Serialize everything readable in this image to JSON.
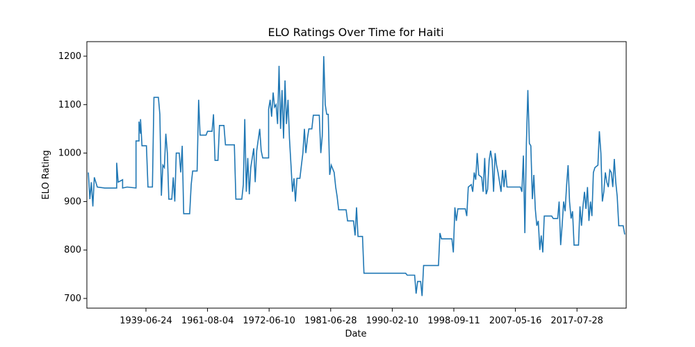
{
  "chart_data": {
    "type": "line",
    "title": "ELO Ratings Over Time for Haiti",
    "xlabel": "Date",
    "ylabel": "ELO Rating",
    "x_tick_labels": [
      "1939-06-24",
      "1961-08-04",
      "1972-06-10",
      "1981-06-28",
      "1990-02-10",
      "1998-09-11",
      "2007-05-16",
      "2017-07-28"
    ],
    "y_ticks": [
      700,
      800,
      900,
      1000,
      1100,
      1200
    ],
    "ylim": [
      680,
      1230
    ],
    "grid": false,
    "line_color": "#1f77b4",
    "series": [
      {
        "points": [
          [
            1,
            960
          ],
          [
            2,
            905
          ],
          [
            3,
            940
          ],
          [
            4,
            890
          ],
          [
            5,
            950
          ],
          [
            7,
            930
          ],
          [
            12,
            928
          ],
          [
            20,
            928
          ],
          [
            20,
            980
          ],
          [
            21,
            940
          ],
          [
            24,
            945
          ],
          [
            24,
            928
          ],
          [
            27,
            930
          ],
          [
            33,
            928
          ],
          [
            33,
            1025
          ],
          [
            35,
            1025
          ],
          [
            35,
            1065
          ],
          [
            36,
            1040
          ],
          [
            36,
            1070
          ],
          [
            37,
            1015
          ],
          [
            40,
            1015
          ],
          [
            41,
            930
          ],
          [
            44,
            930
          ],
          [
            45,
            1115
          ],
          [
            48,
            1115
          ],
          [
            49,
            1080
          ],
          [
            50,
            912
          ],
          [
            51,
            975
          ],
          [
            52,
            970
          ],
          [
            53,
            1040
          ],
          [
            54,
            1000
          ],
          [
            55,
            905
          ],
          [
            57,
            905
          ],
          [
            58,
            950
          ],
          [
            59,
            900
          ],
          [
            60,
            1000
          ],
          [
            62,
            1000
          ],
          [
            63,
            960
          ],
          [
            64,
            1015
          ],
          [
            65,
            875
          ],
          [
            69,
            875
          ],
          [
            70,
            935
          ],
          [
            71,
            963
          ],
          [
            74,
            963
          ],
          [
            75,
            1110
          ],
          [
            76,
            1037
          ],
          [
            80,
            1037
          ],
          [
            81,
            1045
          ],
          [
            84,
            1045
          ],
          [
            85,
            1080
          ],
          [
            86,
            985
          ],
          [
            88,
            985
          ],
          [
            89,
            1057
          ],
          [
            92,
            1057
          ],
          [
            93,
            1017
          ],
          [
            99,
            1017
          ],
          [
            100,
            905
          ],
          [
            104,
            905
          ],
          [
            105,
            935
          ],
          [
            106,
            1070
          ],
          [
            107,
            920
          ],
          [
            108,
            990
          ],
          [
            109,
            915
          ],
          [
            110,
            970
          ],
          [
            112,
            1010
          ],
          [
            113,
            940
          ],
          [
            114,
            1005
          ],
          [
            116,
            1050
          ],
          [
            117,
            1005
          ],
          [
            118,
            990
          ],
          [
            122,
            990
          ],
          [
            122,
            1090
          ],
          [
            123,
            1110
          ],
          [
            124,
            1075
          ],
          [
            125,
            1125
          ],
          [
            126,
            1095
          ],
          [
            127,
            1100
          ],
          [
            128,
            1060
          ],
          [
            129,
            1180
          ],
          [
            130,
            1050
          ],
          [
            131,
            1130
          ],
          [
            132,
            1030
          ],
          [
            133,
            1150
          ],
          [
            134,
            1060
          ],
          [
            135,
            1110
          ],
          [
            136,
            1030
          ],
          [
            137,
            975
          ],
          [
            138,
            920
          ],
          [
            139,
            948
          ],
          [
            140,
            900
          ],
          [
            141,
            948
          ],
          [
            143,
            948
          ],
          [
            144,
            975
          ],
          [
            145,
            1000
          ],
          [
            146,
            1050
          ],
          [
            147,
            1000
          ],
          [
            148,
            1030
          ],
          [
            149,
            1050
          ],
          [
            151,
            1050
          ],
          [
            152,
            1078
          ],
          [
            156,
            1078
          ],
          [
            157,
            1000
          ],
          [
            158,
            1035
          ],
          [
            159,
            1200
          ],
          [
            160,
            1100
          ],
          [
            161,
            1080
          ],
          [
            162,
            1080
          ],
          [
            163,
            955
          ],
          [
            164,
            975
          ],
          [
            166,
            960
          ],
          [
            167,
            930
          ],
          [
            168,
            910
          ],
          [
            169,
            883
          ],
          [
            174,
            883
          ],
          [
            175,
            860
          ],
          [
            179,
            860
          ],
          [
            180,
            830
          ],
          [
            181,
            888
          ],
          [
            182,
            828
          ],
          [
            185,
            828
          ],
          [
            186,
            752
          ],
          [
            214,
            752
          ],
          [
            215,
            748
          ],
          [
            220,
            748
          ],
          [
            221,
            710
          ],
          [
            222,
            735
          ],
          [
            224,
            735
          ],
          [
            225,
            705
          ],
          [
            226,
            768
          ],
          [
            236,
            768
          ],
          [
            237,
            835
          ],
          [
            238,
            823
          ],
          [
            245,
            823
          ],
          [
            246,
            795
          ],
          [
            247,
            888
          ],
          [
            248,
            860
          ],
          [
            249,
            885
          ],
          [
            254,
            885
          ],
          [
            255,
            870
          ],
          [
            256,
            930
          ],
          [
            258,
            935
          ],
          [
            259,
            920
          ],
          [
            260,
            960
          ],
          [
            261,
            945
          ],
          [
            262,
            1000
          ],
          [
            263,
            955
          ],
          [
            265,
            950
          ],
          [
            266,
            920
          ],
          [
            267,
            990
          ],
          [
            268,
            915
          ],
          [
            269,
            925
          ],
          [
            270,
            985
          ],
          [
            271,
            1005
          ],
          [
            272,
            985
          ],
          [
            273,
            920
          ],
          [
            274,
            1000
          ],
          [
            275,
            975
          ],
          [
            276,
            960
          ],
          [
            277,
            940
          ],
          [
            278,
            920
          ],
          [
            279,
            965
          ],
          [
            280,
            930
          ],
          [
            281,
            965
          ],
          [
            282,
            930
          ],
          [
            291,
            930
          ],
          [
            292,
            920
          ],
          [
            293,
            995
          ],
          [
            294,
            835
          ],
          [
            295,
            1020
          ],
          [
            296,
            1130
          ],
          [
            297,
            1020
          ],
          [
            298,
            1015
          ],
          [
            299,
            905
          ],
          [
            300,
            955
          ],
          [
            301,
            885
          ],
          [
            302,
            850
          ],
          [
            303,
            860
          ],
          [
            304,
            800
          ],
          [
            305,
            830
          ],
          [
            306,
            795
          ],
          [
            307,
            870
          ],
          [
            312,
            870
          ],
          [
            313,
            865
          ],
          [
            316,
            865
          ],
          [
            317,
            900
          ],
          [
            318,
            810
          ],
          [
            319,
            850
          ],
          [
            320,
            900
          ],
          [
            321,
            880
          ],
          [
            322,
            935
          ],
          [
            323,
            975
          ],
          [
            324,
            900
          ],
          [
            325,
            865
          ],
          [
            326,
            880
          ],
          [
            327,
            810
          ],
          [
            330,
            810
          ],
          [
            331,
            890
          ],
          [
            332,
            850
          ],
          [
            333,
            890
          ],
          [
            334,
            920
          ],
          [
            335,
            885
          ],
          [
            336,
            930
          ],
          [
            337,
            860
          ],
          [
            338,
            900
          ],
          [
            339,
            870
          ],
          [
            340,
            960
          ],
          [
            341,
            970
          ],
          [
            343,
            975
          ],
          [
            344,
            1045
          ],
          [
            345,
            1000
          ],
          [
            346,
            900
          ],
          [
            347,
            920
          ],
          [
            348,
            960
          ],
          [
            349,
            940
          ],
          [
            350,
            930
          ],
          [
            351,
            965
          ],
          [
            352,
            960
          ],
          [
            353,
            930
          ],
          [
            354,
            988
          ],
          [
            355,
            940
          ],
          [
            356,
            910
          ],
          [
            357,
            850
          ],
          [
            360,
            850
          ],
          [
            361,
            832
          ]
        ]
      }
    ]
  }
}
